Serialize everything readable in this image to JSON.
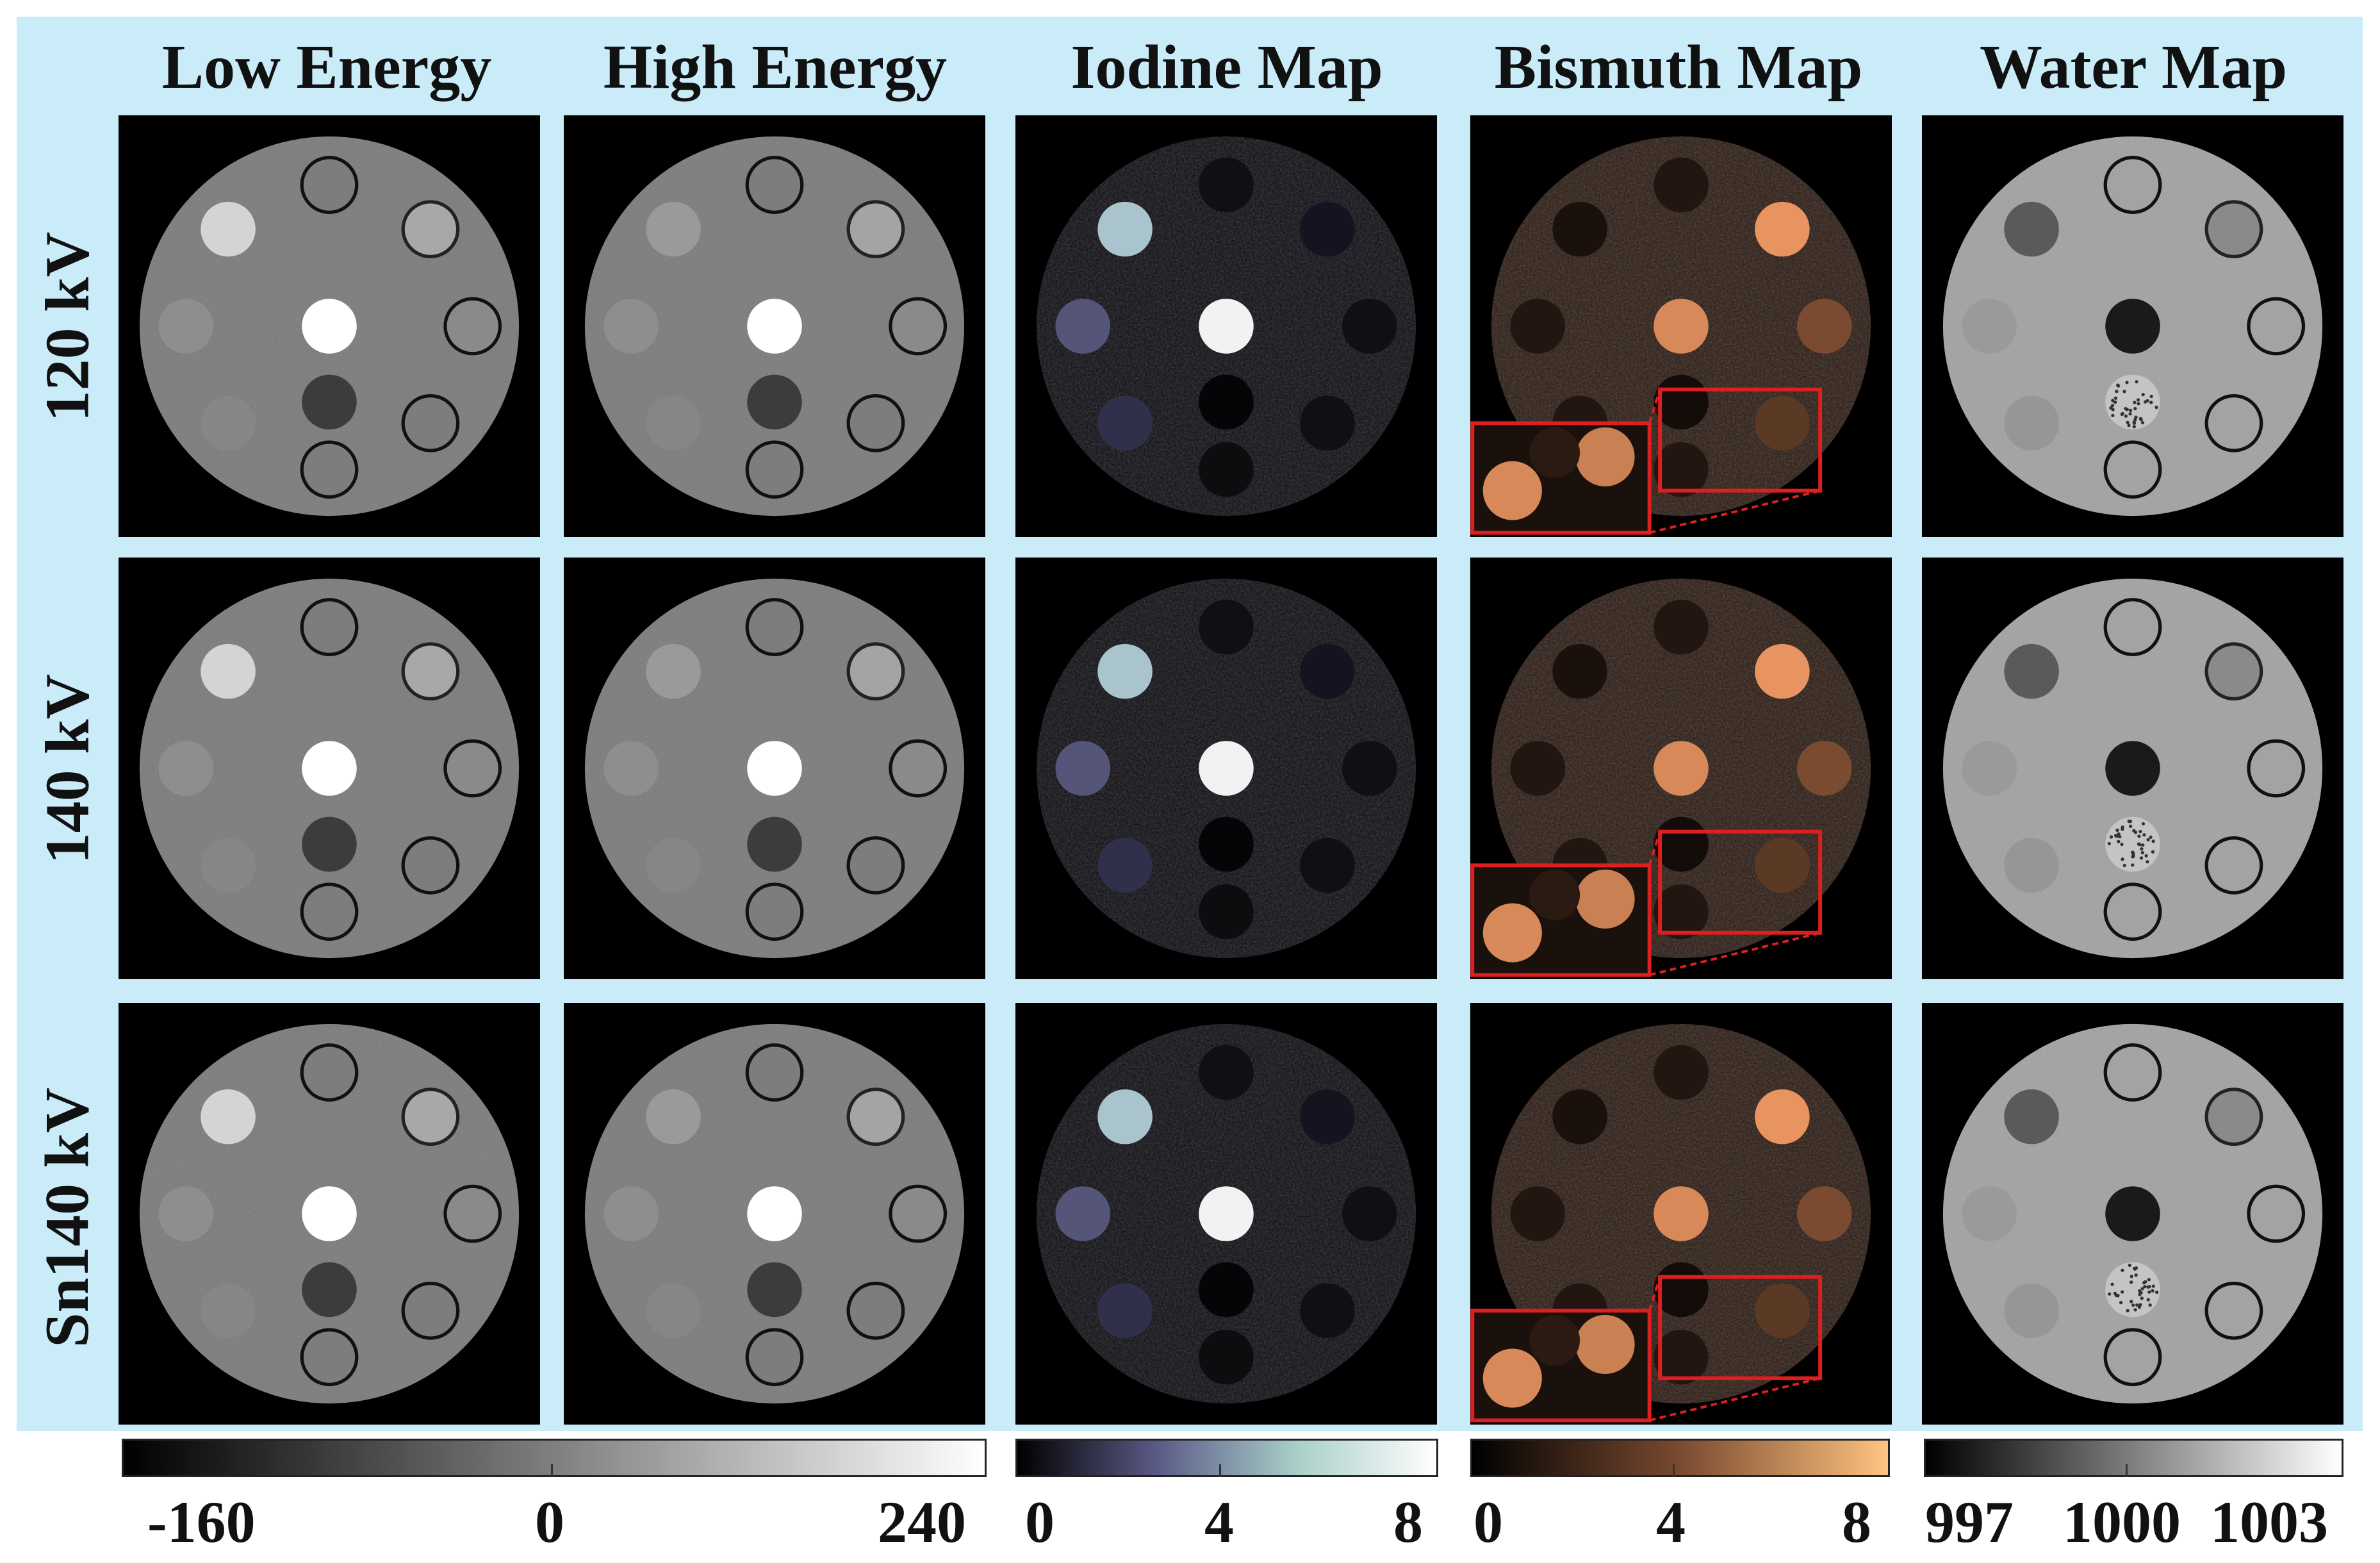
{
  "columns": [
    {
      "id": "low",
      "title": "Low Energy",
      "colormap": "gray"
    },
    {
      "id": "high",
      "title": "High Energy",
      "colormap": "gray"
    },
    {
      "id": "iodine",
      "title": "Iodine Map",
      "colormap": "bone"
    },
    {
      "id": "bismuth",
      "title": "Bismuth Map",
      "colormap": "copper"
    },
    {
      "id": "water",
      "title": "Water Map",
      "colormap": "gray"
    }
  ],
  "rows": [
    {
      "id": "r120",
      "label": "120 kV"
    },
    {
      "id": "r140",
      "label": "140 kV"
    },
    {
      "id": "rsn140",
      "label": "Sn140 kV"
    }
  ],
  "colorbars": [
    {
      "id": "ct",
      "colors": [
        "#000000",
        "#ffffff"
      ],
      "ticks": [
        "-160",
        "0",
        "240"
      ]
    },
    {
      "id": "iodine",
      "colors": [
        "#000000",
        "#5a5a86",
        "#a9cfc9",
        "#ffffff"
      ],
      "ticks": [
        "0",
        "4",
        "8"
      ]
    },
    {
      "id": "bismuth",
      "colors": [
        "#000000",
        "#7a4a30",
        "#ffc480"
      ],
      "ticks": [
        "0",
        "4",
        "8"
      ]
    },
    {
      "id": "water",
      "colors": [
        "#000000",
        "#ffffff"
      ],
      "ticks": [
        "997",
        "1000",
        "1003"
      ]
    }
  ],
  "colors": {
    "panel_background": "#c9ecf8",
    "zoom_box": "#dd1f1f"
  }
}
